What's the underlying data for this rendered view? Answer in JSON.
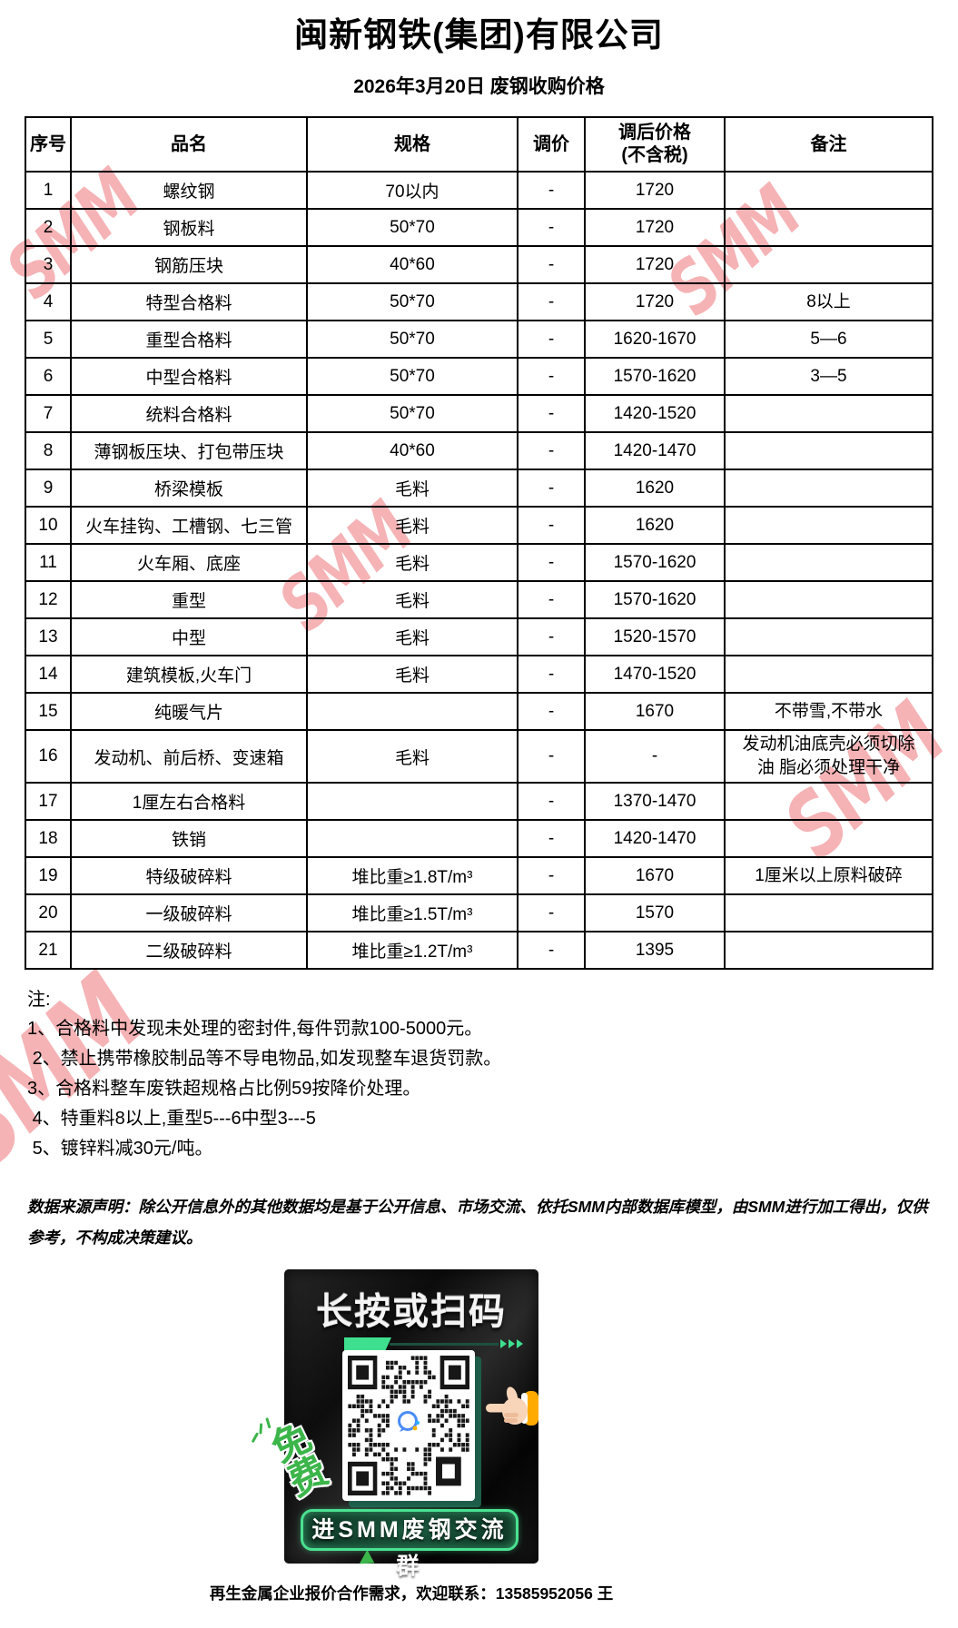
{
  "page": {
    "title": "闽新钢铁(集团)有限公司",
    "subtitle": "2026年3月20日 废钢收购价格",
    "watermark": "SMM",
    "watermark_color": "#e84a50",
    "footer": "再生金属企业报价合作需求，欢迎联系：13585952056 王"
  },
  "table": {
    "headers": {
      "index": "序号",
      "name": "品名",
      "spec": "规格",
      "adjust": "调价",
      "price_line1": "调后价格",
      "price_line2": "(不含税)",
      "remark": "备注"
    },
    "rows": [
      {
        "no": "1",
        "name": "螺纹钢",
        "spec": "70以内",
        "adjust": "-",
        "price": "1720",
        "remark": ""
      },
      {
        "no": "2",
        "name": "钢板料",
        "spec": "50*70",
        "adjust": "-",
        "price": "1720",
        "remark": ""
      },
      {
        "no": "3",
        "name": "钢筋压块",
        "spec": "40*60",
        "adjust": "-",
        "price": "1720",
        "remark": ""
      },
      {
        "no": "4",
        "name": "特型合格料",
        "spec": "50*70",
        "adjust": "-",
        "price": "1720",
        "remark": "8以上"
      },
      {
        "no": "5",
        "name": "重型合格料",
        "spec": "50*70",
        "adjust": "-",
        "price": "1620-1670",
        "remark": "5—6"
      },
      {
        "no": "6",
        "name": "中型合格料",
        "spec": "50*70",
        "adjust": "-",
        "price": "1570-1620",
        "remark": "3—5"
      },
      {
        "no": "7",
        "name": "统料合格料",
        "spec": "50*70",
        "adjust": "-",
        "price": "1420-1520",
        "remark": ""
      },
      {
        "no": "8",
        "name": "薄钢板压块、打包带压块",
        "spec": "40*60",
        "adjust": "-",
        "price": "1420-1470",
        "remark": ""
      },
      {
        "no": "9",
        "name": "桥梁模板",
        "spec": "毛料",
        "adjust": "-",
        "price": "1620",
        "remark": ""
      },
      {
        "no": "10",
        "name": "火车挂钩、工槽钢、七三管",
        "spec": "毛料",
        "adjust": "-",
        "price": "1620",
        "remark": ""
      },
      {
        "no": "11",
        "name": "火车厢、底座",
        "spec": "毛料",
        "adjust": "-",
        "price": "1570-1620",
        "remark": ""
      },
      {
        "no": "12",
        "name": "重型",
        "spec": "毛料",
        "adjust": "-",
        "price": "1570-1620",
        "remark": ""
      },
      {
        "no": "13",
        "name": "中型",
        "spec": "毛料",
        "adjust": "-",
        "price": "1520-1570",
        "remark": ""
      },
      {
        "no": "14",
        "name": "建筑模板,火车门",
        "spec": "毛料",
        "adjust": "-",
        "price": "1470-1520",
        "remark": ""
      },
      {
        "no": "15",
        "name": "纯暖气片",
        "spec": "",
        "adjust": "-",
        "price": "1670",
        "remark": "不带雪,不带水"
      },
      {
        "no": "16",
        "name": "发动机、前后桥、变速箱",
        "spec": "毛料",
        "adjust": "-",
        "price": "-",
        "remark": "发动机油底壳必须切除\n油 脂必须处理干净"
      },
      {
        "no": "17",
        "name": "1厘左右合格料",
        "spec": "",
        "adjust": "-",
        "price": "1370-1470",
        "remark": ""
      },
      {
        "no": "18",
        "name": "铁销",
        "spec": "",
        "adjust": "-",
        "price": "1420-1470",
        "remark": ""
      },
      {
        "no": "19",
        "name": "特级破碎料",
        "spec": "堆比重≥1.8T/m³",
        "adjust": "-",
        "price": "1670",
        "remark": "1厘米以上原料破碎"
      },
      {
        "no": "20",
        "name": "一级破碎料",
        "spec": "堆比重≥1.5T/m³",
        "adjust": "-",
        "price": "1570",
        "remark": ""
      },
      {
        "no": "21",
        "name": "二级破碎料",
        "spec": "堆比重≥1.2T/m³",
        "adjust": "-",
        "price": "1395",
        "remark": ""
      }
    ]
  },
  "notes": {
    "label": "注:",
    "items": [
      "1、合格料中发现未处理的密封件,每件罚款100-5000元。",
      " 2、禁止携带橡胶制品等不导电物品,如发现整车退货罚款。",
      "3、合格料整车废铁超规格占比例59按降价处理。",
      " 4、特重料8以上,重型5---6中型3---5",
      " 5、镀锌料减30元/吨。"
    ]
  },
  "disclaimer": "数据来源声明：除公开信息外的其他数据均是基于公开信息、市场交流、依托SMM内部数据库模型，由SMM进行加工得出，仅供参考，不构成决策建议。",
  "qr_block": {
    "headline": "长按或扫码",
    "free_label": "免\n费",
    "button_label": "进SMM废钢交流群",
    "accent_green": "#3ee08f"
  }
}
